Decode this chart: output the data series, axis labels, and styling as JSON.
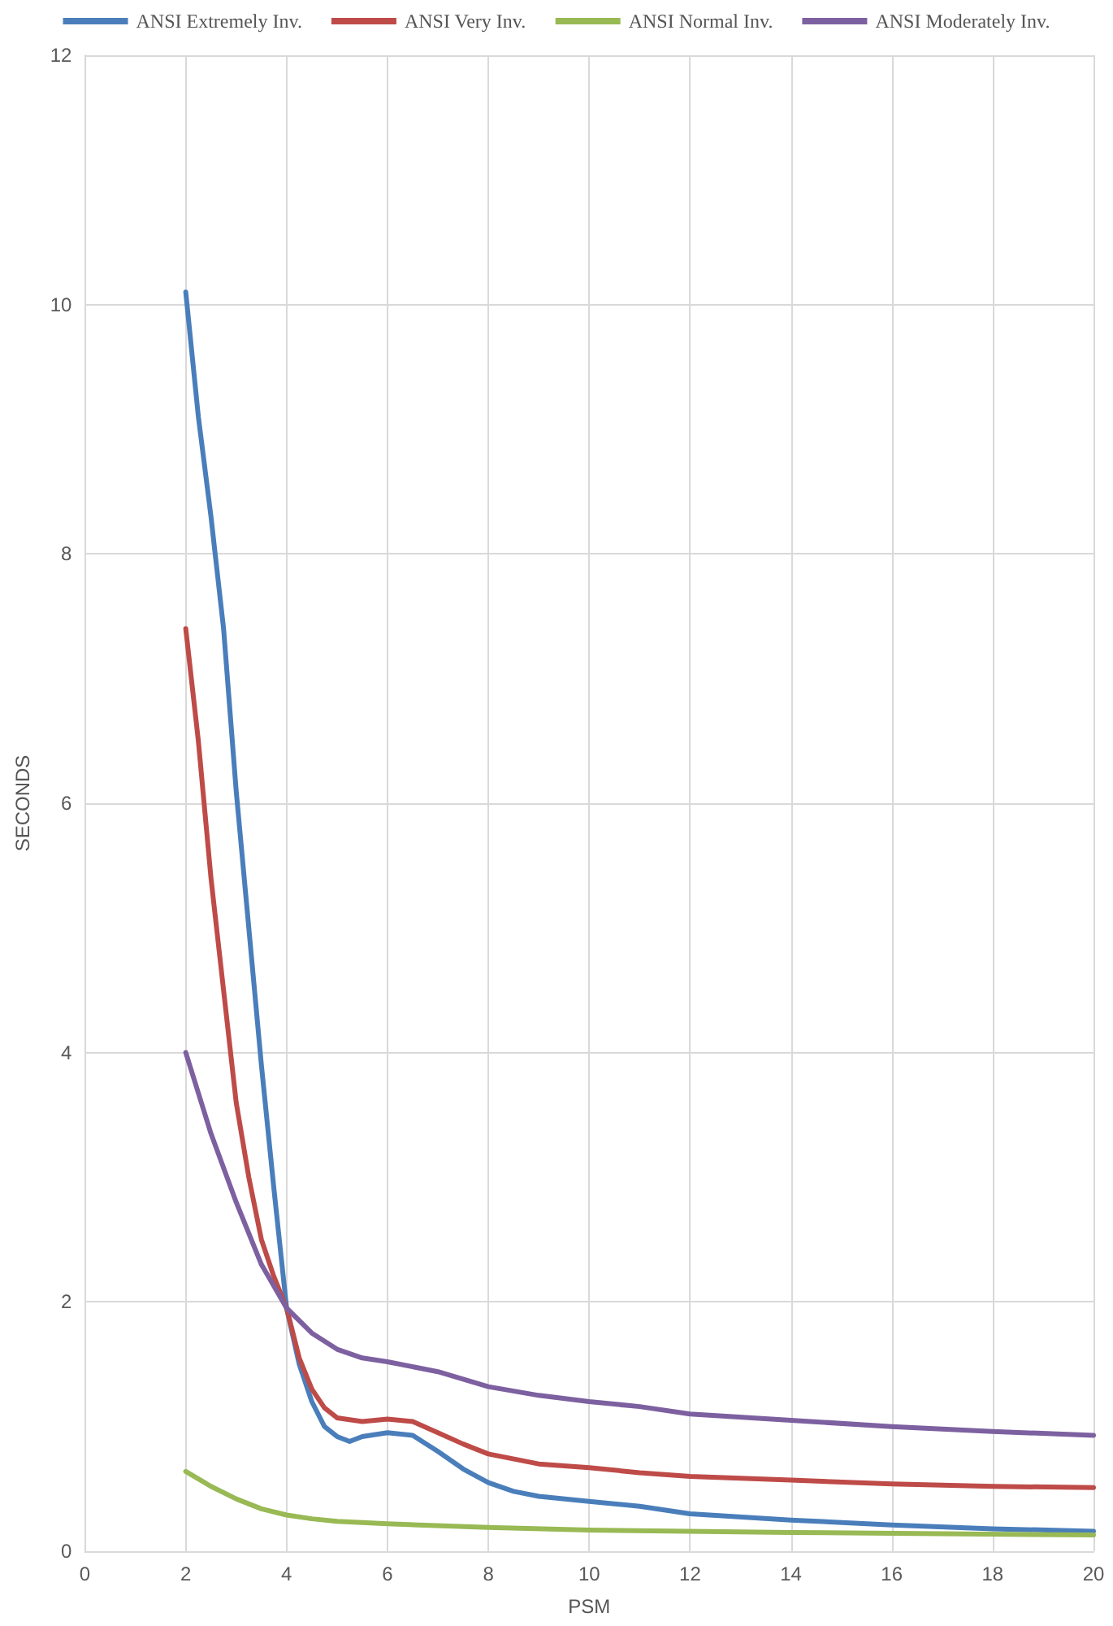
{
  "chart_data": {
    "type": "line",
    "xlabel": "PSM",
    "ylabel": "SECONDS",
    "xlim": [
      0,
      20
    ],
    "xticks": [
      0,
      2,
      4,
      6,
      8,
      10,
      12,
      14,
      16,
      18,
      20
    ],
    "ylim": [
      0,
      12
    ],
    "yticks": [
      0,
      2,
      4,
      6,
      8,
      10,
      12
    ],
    "grid": true,
    "legend": "top",
    "marker": "none",
    "line_style": "solid",
    "series": [
      {
        "name": "ANSI Extremely Inv.",
        "color": "#4a7ebb",
        "x": [
          2,
          2.25,
          2.5,
          2.75,
          3,
          3.25,
          3.5,
          3.75,
          4,
          4.25,
          4.5,
          4.75,
          5,
          5.25,
          5.5,
          6,
          6.5,
          7,
          7.5,
          8,
          8.5,
          9,
          10,
          11,
          12,
          14,
          16,
          18,
          20
        ],
        "values": [
          10.1,
          9.1,
          8.3,
          7.4,
          6.1,
          5.0,
          3.9,
          2.9,
          1.95,
          1.5,
          1.2,
          1.0,
          0.92,
          0.88,
          0.92,
          0.95,
          0.93,
          0.8,
          0.66,
          0.55,
          0.48,
          0.44,
          0.4,
          0.36,
          0.3,
          0.25,
          0.21,
          0.18,
          0.16
        ]
      },
      {
        "name": "ANSI Very Inv.",
        "color": "#be4b48",
        "x": [
          2,
          2.25,
          2.5,
          2.75,
          3,
          3.25,
          3.5,
          3.75,
          4,
          4.25,
          4.5,
          4.75,
          5,
          5.5,
          6,
          6.5,
          7,
          7.5,
          8,
          9,
          10,
          11,
          12,
          14,
          16,
          18,
          20
        ],
        "values": [
          7.4,
          6.5,
          5.4,
          4.5,
          3.6,
          3.0,
          2.5,
          2.2,
          1.95,
          1.55,
          1.3,
          1.15,
          1.07,
          1.04,
          1.06,
          1.04,
          0.95,
          0.86,
          0.78,
          0.7,
          0.67,
          0.63,
          0.6,
          0.57,
          0.54,
          0.52,
          0.51
        ]
      },
      {
        "name": "ANSI Normal Inv.",
        "color": "#98b954",
        "x": [
          2,
          2.5,
          3,
          3.5,
          4,
          4.5,
          5,
          6,
          8,
          10,
          14,
          20
        ],
        "values": [
          0.64,
          0.52,
          0.42,
          0.34,
          0.29,
          0.26,
          0.24,
          0.22,
          0.19,
          0.17,
          0.15,
          0.13
        ]
      },
      {
        "name": "ANSI Moderately Inv.",
        "color": "#7d60a0",
        "x": [
          2,
          2.5,
          3,
          3.5,
          4,
          4.5,
          5,
          5.5,
          6,
          7,
          8,
          9,
          10,
          11,
          12,
          14,
          16,
          18,
          20
        ],
        "values": [
          4.0,
          3.35,
          2.8,
          2.3,
          1.95,
          1.75,
          1.62,
          1.55,
          1.52,
          1.44,
          1.32,
          1.25,
          1.2,
          1.16,
          1.1,
          1.05,
          1.0,
          0.96,
          0.93
        ]
      }
    ]
  }
}
